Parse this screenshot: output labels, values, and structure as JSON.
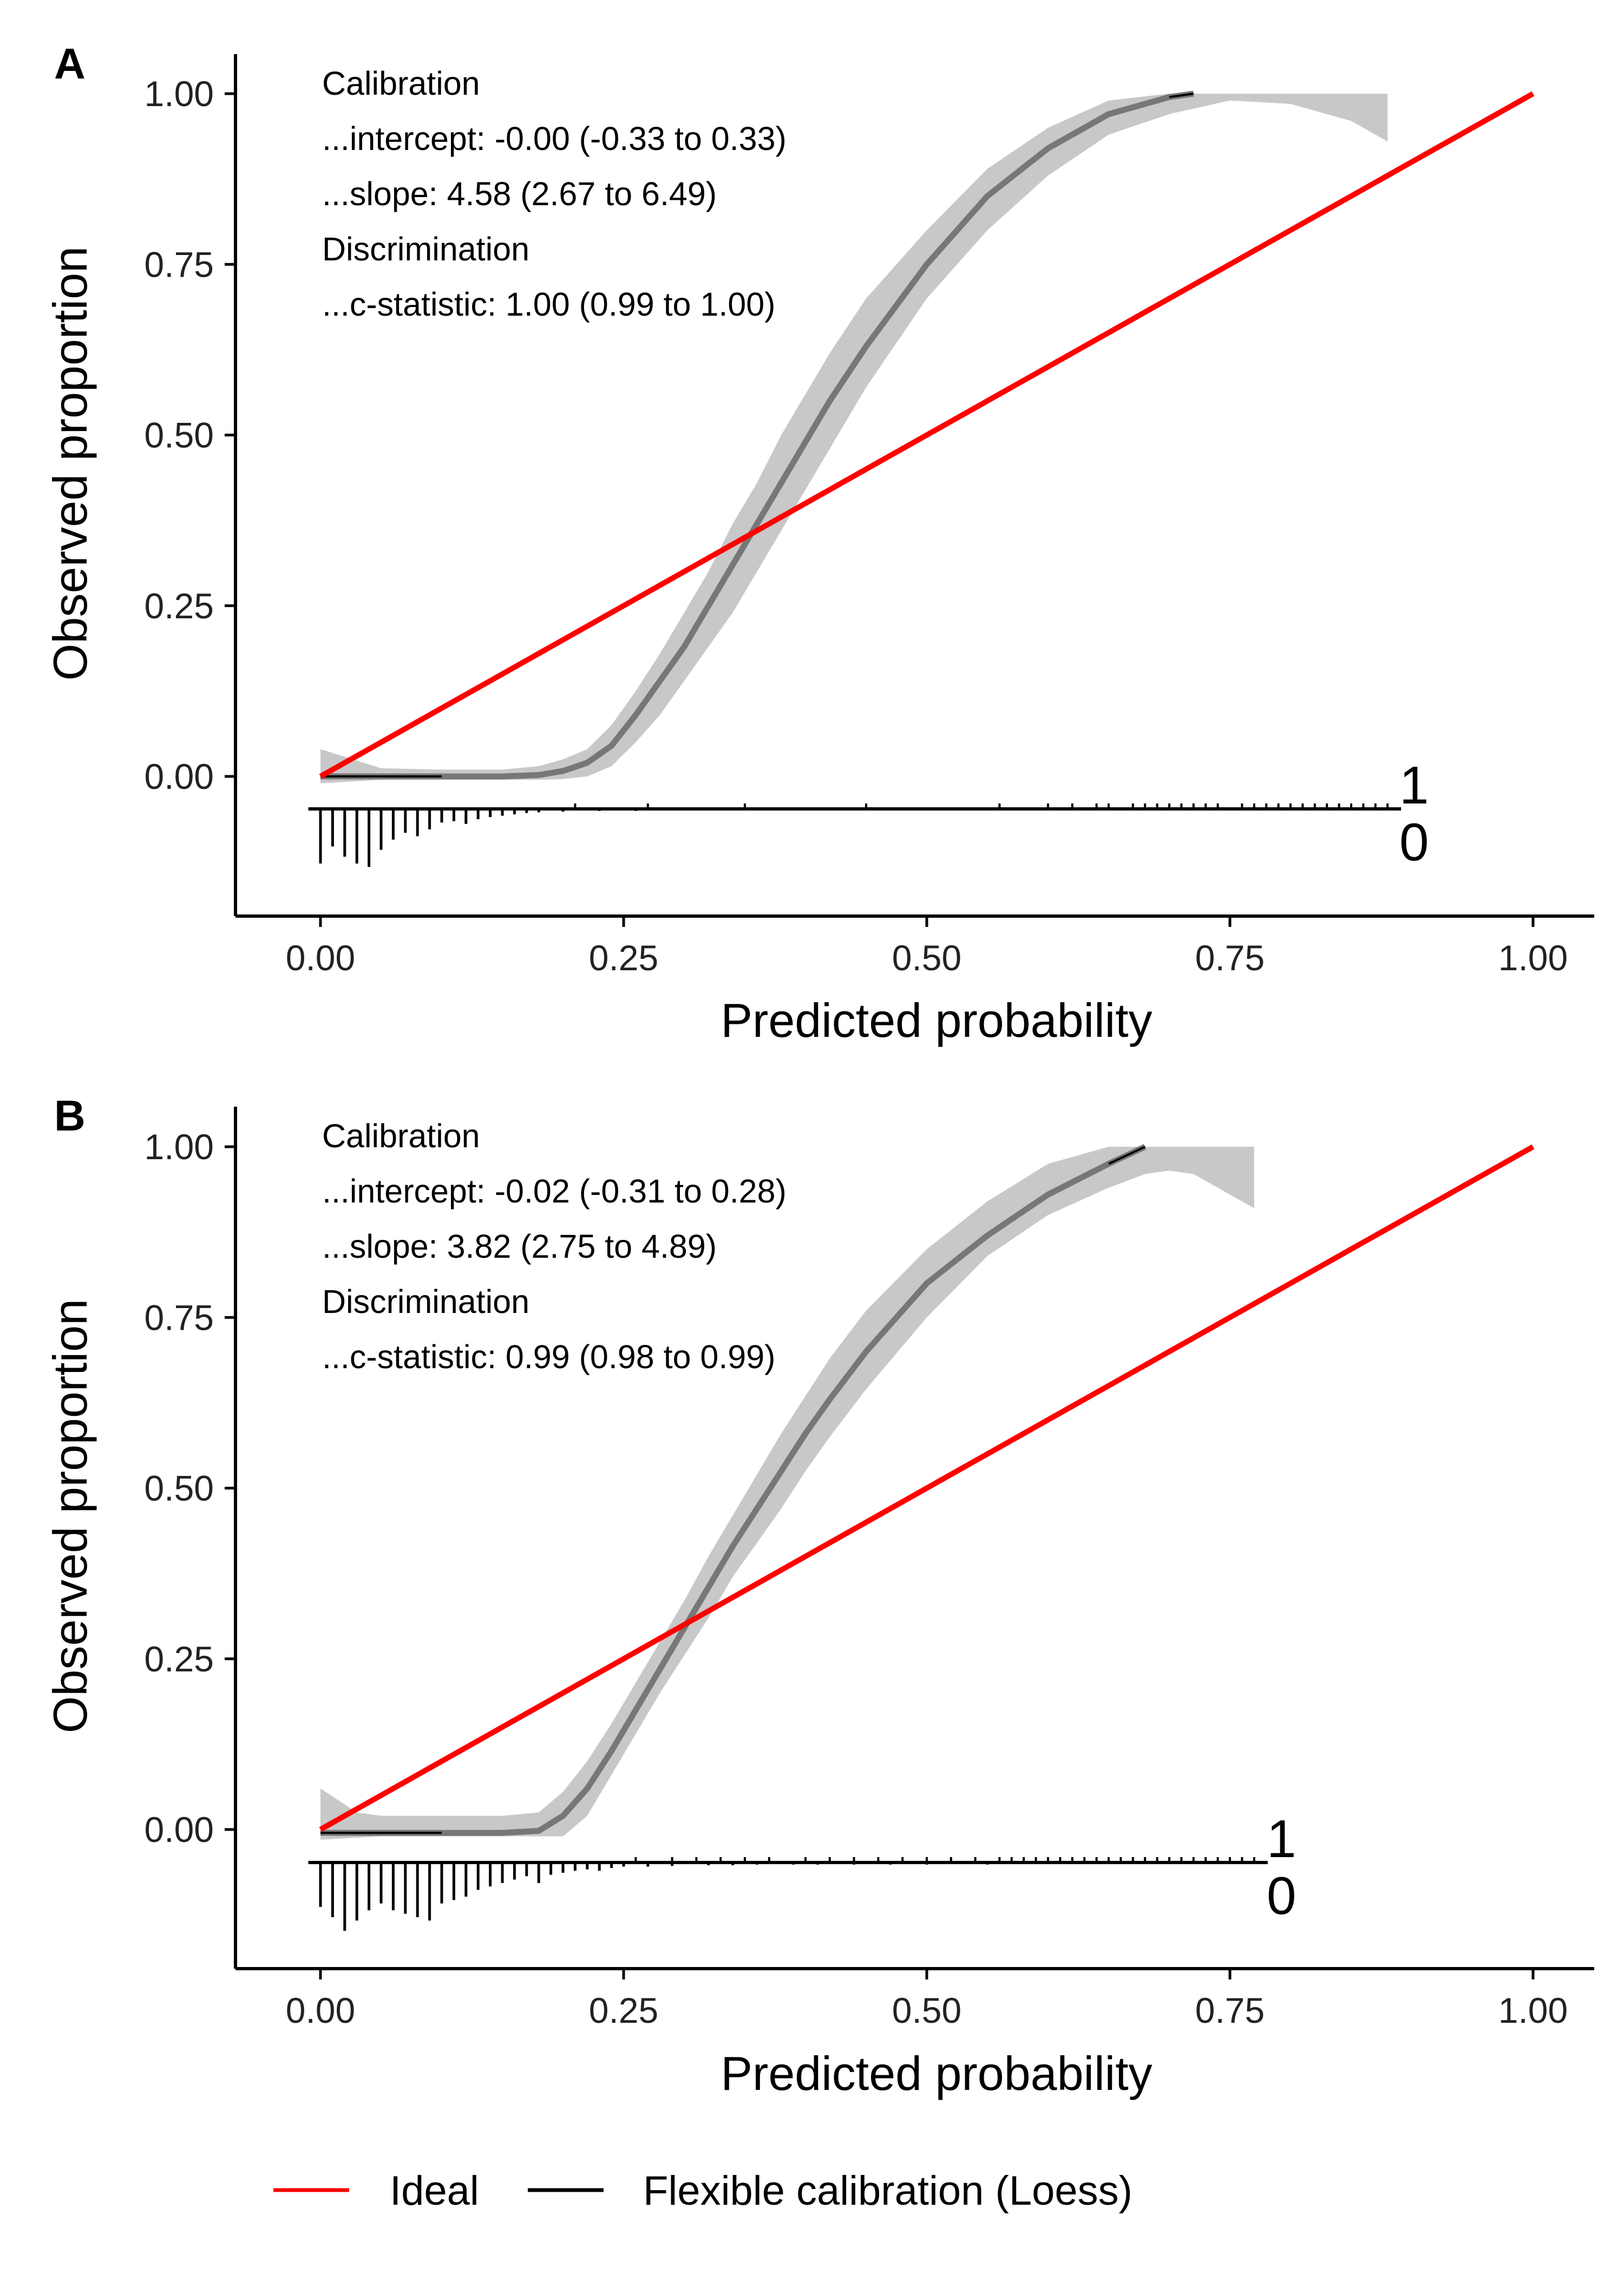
{
  "colors": {
    "ideal": "#ff0000",
    "loess": "#777777",
    "band": "#c8c8c8",
    "axis": "#000000"
  },
  "legend": {
    "ideal_label": "Ideal",
    "loess_label": "Flexible calibration (Loess)"
  },
  "chart_data": [
    {
      "panel_label": "A",
      "type": "line",
      "xlabel": "Predicted probability",
      "ylabel": "Observed proportion",
      "xlim": [
        -0.07,
        1.06
      ],
      "ylim": [
        -0.205,
        1.06
      ],
      "x_ticks": [
        "0.00",
        "0.25",
        "0.50",
        "0.75",
        "1.00"
      ],
      "y_ticks": [
        "0.00",
        "0.25",
        "0.50",
        "0.75",
        "1.00"
      ],
      "x_tick_values": [
        0,
        0.25,
        0.5,
        0.75,
        1
      ],
      "y_tick_values": [
        0,
        0.25,
        0.5,
        0.75,
        1
      ],
      "annotations": [
        "Calibration",
        "...intercept: -0.00 (-0.33 to 0.33)",
        "...slope: 4.58 (2.67 to 6.49)",
        "Discrimination",
        "...c-statistic: 1.00 (0.99 to 1.00)"
      ],
      "rug_labels": [
        "1",
        "0"
      ],
      "series": [
        {
          "name": "Ideal",
          "x": [
            0,
            1
          ],
          "y": [
            0,
            1
          ]
        },
        {
          "name": "Flexible calibration (Loess)",
          "x": [
            0,
            0.05,
            0.1,
            0.15,
            0.18,
            0.2,
            0.22,
            0.24,
            0.26,
            0.28,
            0.3,
            0.32,
            0.34,
            0.36,
            0.38,
            0.4,
            0.42,
            0.45,
            0.5,
            0.55,
            0.6,
            0.65,
            0.7,
            0.72
          ],
          "y": [
            0,
            0,
            0,
            0,
            0.002,
            0.008,
            0.02,
            0.045,
            0.09,
            0.14,
            0.19,
            0.25,
            0.31,
            0.37,
            0.43,
            0.49,
            0.55,
            0.63,
            0.75,
            0.85,
            0.92,
            0.97,
            0.995,
            1.0
          ]
        }
      ],
      "band": {
        "x": [
          0,
          0.05,
          0.1,
          0.15,
          0.18,
          0.2,
          0.22,
          0.24,
          0.26,
          0.28,
          0.3,
          0.32,
          0.34,
          0.36,
          0.38,
          0.4,
          0.42,
          0.45,
          0.5,
          0.55,
          0.6,
          0.65,
          0.7,
          0.75,
          0.8,
          0.85,
          0.88
        ],
        "lower": [
          -0.01,
          -0.005,
          -0.005,
          -0.005,
          -0.005,
          -0.004,
          0.0,
          0.015,
          0.05,
          0.09,
          0.14,
          0.19,
          0.24,
          0.3,
          0.36,
          0.42,
          0.48,
          0.57,
          0.7,
          0.8,
          0.88,
          0.94,
          0.97,
          0.99,
          0.985,
          0.96,
          0.93
        ],
        "upper": [
          0.04,
          0.012,
          0.01,
          0.01,
          0.015,
          0.025,
          0.04,
          0.075,
          0.125,
          0.18,
          0.24,
          0.3,
          0.37,
          0.43,
          0.5,
          0.56,
          0.62,
          0.7,
          0.8,
          0.89,
          0.95,
          0.99,
          1.0,
          1.0,
          1.0,
          1.0,
          1.0
        ]
      },
      "rug": {
        "events": [
          0.21,
          0.27,
          0.35,
          0.45,
          0.56,
          0.6,
          0.62,
          0.64,
          0.65,
          0.67,
          0.68,
          0.69,
          0.7,
          0.71,
          0.72,
          0.73,
          0.74,
          0.76,
          0.77,
          0.78,
          0.79,
          0.8,
          0.81,
          0.82,
          0.83,
          0.84,
          0.85,
          0.86,
          0.87,
          0.88
        ],
        "non_events": [
          [
            0.0,
            0.08
          ],
          [
            0.01,
            0.055
          ],
          [
            0.02,
            0.07
          ],
          [
            0.03,
            0.08
          ],
          [
            0.04,
            0.085
          ],
          [
            0.05,
            0.06
          ],
          [
            0.06,
            0.045
          ],
          [
            0.07,
            0.035
          ],
          [
            0.08,
            0.04
          ],
          [
            0.09,
            0.03
          ],
          [
            0.1,
            0.02
          ],
          [
            0.11,
            0.018
          ],
          [
            0.12,
            0.022
          ],
          [
            0.13,
            0.015
          ],
          [
            0.14,
            0.012
          ],
          [
            0.15,
            0.01
          ],
          [
            0.16,
            0.008
          ],
          [
            0.17,
            0.006
          ],
          [
            0.18,
            0.005
          ],
          [
            0.2,
            0.004
          ],
          [
            0.23,
            0.003
          ],
          [
            0.26,
            0.003
          ]
        ]
      }
    },
    {
      "panel_label": "B",
      "type": "line",
      "xlabel": "Predicted probability",
      "ylabel": "Observed proportion",
      "xlim": [
        -0.07,
        1.06
      ],
      "ylim": [
        -0.205,
        1.06
      ],
      "x_ticks": [
        "0.00",
        "0.25",
        "0.50",
        "0.75",
        "1.00"
      ],
      "y_ticks": [
        "0.00",
        "0.25",
        "0.50",
        "0.75",
        "1.00"
      ],
      "x_tick_values": [
        0,
        0.25,
        0.5,
        0.75,
        1
      ],
      "y_tick_values": [
        0,
        0.25,
        0.5,
        0.75,
        1
      ],
      "annotations": [
        "Calibration",
        "...intercept: -0.02 (-0.31 to 0.28)",
        "...slope: 3.82 (2.75 to 4.89)",
        "Discrimination",
        "...c-statistic: 0.99 (0.98 to 0.99)"
      ],
      "rug_labels": [
        "1",
        "0"
      ],
      "series": [
        {
          "name": "Ideal",
          "x": [
            0,
            1
          ],
          "y": [
            0,
            1
          ]
        },
        {
          "name": "Flexible calibration (Loess)",
          "x": [
            0,
            0.05,
            0.1,
            0.15,
            0.18,
            0.2,
            0.22,
            0.24,
            0.26,
            0.28,
            0.3,
            0.32,
            0.34,
            0.36,
            0.38,
            0.4,
            0.42,
            0.45,
            0.5,
            0.55,
            0.6,
            0.65,
            0.68
          ],
          "y": [
            -0.005,
            -0.005,
            -0.005,
            -0.005,
            -0.002,
            0.02,
            0.06,
            0.115,
            0.175,
            0.235,
            0.295,
            0.355,
            0.415,
            0.47,
            0.525,
            0.58,
            0.63,
            0.7,
            0.8,
            0.87,
            0.93,
            0.975,
            1.0
          ]
        }
      ],
      "band": {
        "x": [
          0,
          0.03,
          0.05,
          0.1,
          0.15,
          0.18,
          0.2,
          0.22,
          0.24,
          0.26,
          0.28,
          0.3,
          0.32,
          0.34,
          0.36,
          0.38,
          0.4,
          0.42,
          0.45,
          0.5,
          0.55,
          0.6,
          0.65,
          0.68,
          0.7,
          0.72,
          0.77
        ],
        "lower": [
          -0.015,
          -0.012,
          -0.01,
          -0.01,
          -0.01,
          -0.01,
          -0.01,
          0.02,
          0.08,
          0.14,
          0.2,
          0.255,
          0.31,
          0.37,
          0.42,
          0.47,
          0.525,
          0.575,
          0.645,
          0.75,
          0.84,
          0.9,
          0.94,
          0.96,
          0.965,
          0.96,
          0.91
        ],
        "upper": [
          0.06,
          0.025,
          0.02,
          0.02,
          0.02,
          0.025,
          0.055,
          0.1,
          0.155,
          0.215,
          0.275,
          0.335,
          0.4,
          0.46,
          0.52,
          0.58,
          0.635,
          0.69,
          0.76,
          0.85,
          0.92,
          0.975,
          1.0,
          1.0,
          1.0,
          1.0,
          1.0
        ]
      },
      "rug": {
        "events": [
          0.26,
          0.29,
          0.31,
          0.33,
          0.35,
          0.37,
          0.4,
          0.42,
          0.44,
          0.46,
          0.48,
          0.5,
          0.52,
          0.54,
          0.56,
          0.57,
          0.58,
          0.59,
          0.6,
          0.61,
          0.62,
          0.63,
          0.64,
          0.65,
          0.66,
          0.67,
          0.68,
          0.69,
          0.7,
          0.71,
          0.72,
          0.73,
          0.74,
          0.75,
          0.76,
          0.77
        ],
        "non_events": [
          [
            0.0,
            0.065
          ],
          [
            0.01,
            0.08
          ],
          [
            0.02,
            0.1
          ],
          [
            0.03,
            0.085
          ],
          [
            0.04,
            0.07
          ],
          [
            0.05,
            0.06
          ],
          [
            0.06,
            0.07
          ],
          [
            0.07,
            0.075
          ],
          [
            0.08,
            0.08
          ],
          [
            0.09,
            0.085
          ],
          [
            0.1,
            0.06
          ],
          [
            0.11,
            0.055
          ],
          [
            0.12,
            0.05
          ],
          [
            0.13,
            0.04
          ],
          [
            0.14,
            0.035
          ],
          [
            0.15,
            0.03
          ],
          [
            0.16,
            0.025
          ],
          [
            0.17,
            0.02
          ],
          [
            0.18,
            0.03
          ],
          [
            0.19,
            0.018
          ],
          [
            0.2,
            0.015
          ],
          [
            0.21,
            0.012
          ],
          [
            0.22,
            0.01
          ],
          [
            0.23,
            0.012
          ],
          [
            0.24,
            0.008
          ],
          [
            0.25,
            0.006
          ],
          [
            0.27,
            0.006
          ],
          [
            0.29,
            0.005
          ],
          [
            0.32,
            0.004
          ],
          [
            0.34,
            0.004
          ],
          [
            0.36,
            0.003
          ],
          [
            0.39,
            0.003
          ],
          [
            0.41,
            0.003
          ],
          [
            0.44,
            0.003
          ],
          [
            0.47,
            0.003
          ],
          [
            0.5,
            0.003
          ],
          [
            0.55,
            0.003
          ]
        ]
      }
    }
  ]
}
